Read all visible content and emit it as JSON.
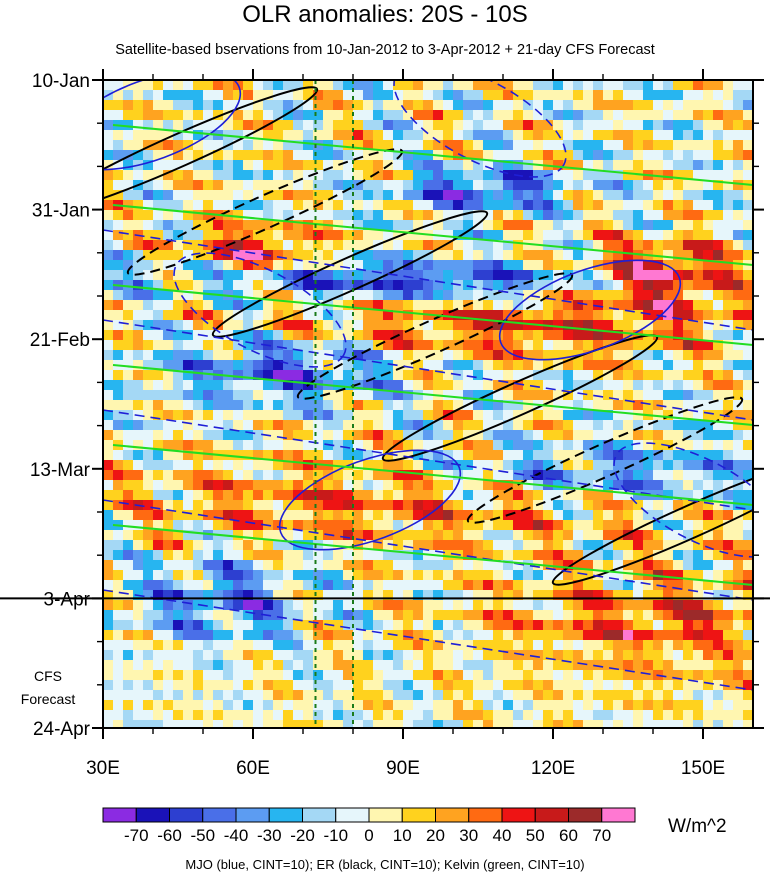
{
  "chart_data": {
    "type": "heatmap",
    "title": "OLR anomalies: 20S - 10S",
    "subtitle": "Satellite-based bservations from 10-Jan-2012 to 3-Apr-2012 + 21-day CFS Forecast",
    "x_axis": {
      "range_deg_east": [
        30,
        160
      ],
      "ticks": [
        {
          "value": 30,
          "label": "30E"
        },
        {
          "value": 60,
          "label": "60E"
        },
        {
          "value": 90,
          "label": "90E"
        },
        {
          "value": 120,
          "label": "120E"
        },
        {
          "value": 150,
          "label": "150E"
        }
      ]
    },
    "y_axis": {
      "range_days_from_10_jan": [
        0,
        105
      ],
      "reversed": true,
      "ticks": [
        {
          "value": 0,
          "label": "10-Jan"
        },
        {
          "value": 21,
          "label": "31-Jan"
        },
        {
          "value": 42,
          "label": "21-Feb"
        },
        {
          "value": 63,
          "label": "13-Mar"
        },
        {
          "value": 84,
          "label": "3-Apr"
        },
        {
          "value": 105,
          "label": "24-Apr"
        }
      ]
    },
    "forecast_start": 84,
    "forecast_label_line1": "CFS",
    "forecast_label_line2": "Forecast",
    "reference_lines_deg_east": [
      72.5,
      80
    ],
    "colorbar": {
      "units": "W/m^2",
      "levels": [
        -70,
        -60,
        -50,
        -40,
        -30,
        -20,
        -10,
        0,
        10,
        20,
        30,
        40,
        50,
        60,
        70
      ],
      "labels": [
        "-70",
        "-60",
        "-50",
        "-40",
        "-30",
        "-20",
        "-10",
        "0",
        "10",
        "20",
        "30",
        "40",
        "50",
        "60",
        "70"
      ],
      "colors": [
        "#8b2be2",
        "#1a12b8",
        "#2d3fd0",
        "#4a6fe8",
        "#5c9cf2",
        "#27b5f0",
        "#a4d8f5",
        "#e6f6fb",
        "#fff6b0",
        "#ffd21e",
        "#ffa320",
        "#ff6a12",
        "#ee1414",
        "#c81a1a",
        "#9c2a2a",
        "#ff78d2"
      ]
    },
    "contour_legend": "MJO (blue, CINT=10); ER (black, CINT=10); Kelvin (green, CINT=10)",
    "contour_colors": {
      "mjo": "#1f1fd6",
      "er": "#000000",
      "kelvin": "#22dd22"
    }
  }
}
